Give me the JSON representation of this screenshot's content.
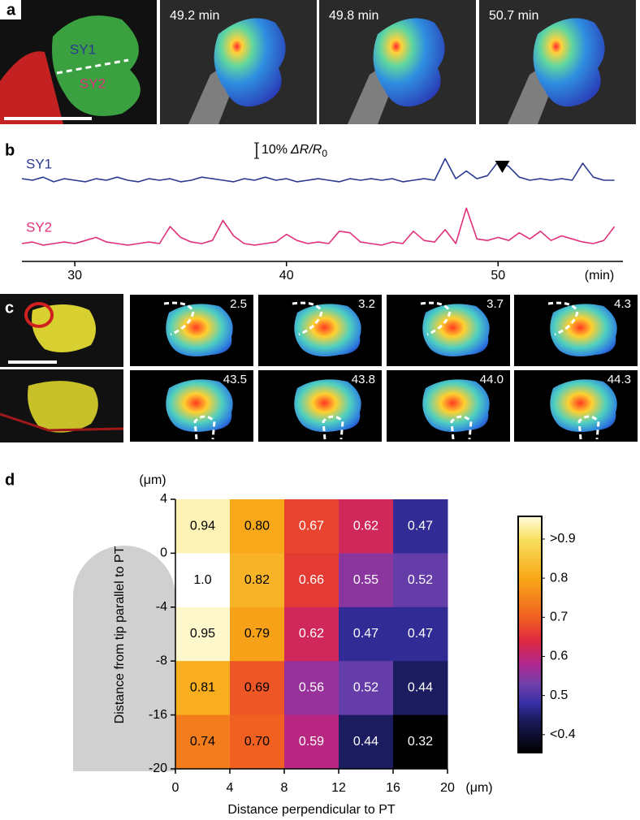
{
  "panel_labels": [
    "a",
    "b",
    "c",
    "d"
  ],
  "panel_a": {
    "sy1": "SY1",
    "sy2": "SY2",
    "times": [
      "49.2 min",
      "49.8 min",
      "50.7 min"
    ]
  },
  "panel_c": {
    "times": [
      [
        "2.5",
        "3.2",
        "3.7",
        "4.3"
      ],
      [
        "43.5",
        "43.8",
        "44.0",
        "44.3"
      ]
    ]
  },
  "chart_data": [
    {
      "type": "line",
      "x": [
        27.5,
        28,
        28.5,
        29,
        29.5,
        30,
        30.5,
        31,
        31.5,
        32,
        32.5,
        33,
        33.5,
        34,
        34.5,
        35,
        35.5,
        36,
        36.5,
        37,
        37.5,
        38,
        38.5,
        39,
        39.5,
        40,
        40.5,
        41,
        41.5,
        42,
        42.5,
        43,
        43.5,
        44,
        44.5,
        45,
        45.5,
        46,
        46.5,
        47,
        47.5,
        48,
        48.5,
        49,
        49.5,
        50,
        50.5,
        51,
        51.5,
        52,
        52.5,
        53,
        53.5,
        54,
        54.5,
        55,
        55.5
      ],
      "xlim": [
        27.5,
        55.9
      ],
      "xticks": [
        30,
        40,
        50
      ],
      "x_unit": "(min)",
      "series": [
        {
          "name": "SY1",
          "color": "#2b3990",
          "values": [
            1,
            0,
            2,
            -1,
            1,
            0,
            -1,
            1,
            0,
            2,
            0,
            -1,
            1,
            0,
            1,
            -1,
            0,
            2,
            1,
            0,
            -1,
            1,
            0,
            2,
            0,
            1,
            -1,
            0,
            1,
            0,
            -1,
            1,
            0,
            1,
            0,
            1,
            -1,
            0,
            1,
            0,
            14,
            1,
            6,
            1,
            3,
            12,
            9,
            2,
            0,
            1,
            0,
            1,
            0,
            11,
            2,
            0,
            0
          ]
        },
        {
          "name": "SY2",
          "color": "#e0307a",
          "values": [
            0,
            1,
            -1,
            0,
            1,
            0,
            2,
            4,
            1,
            0,
            -1,
            0,
            1,
            0,
            11,
            4,
            1,
            0,
            2,
            15,
            5,
            0,
            -1,
            0,
            1,
            6,
            2,
            0,
            1,
            0,
            8,
            7,
            1,
            0,
            -1,
            1,
            0,
            8,
            2,
            1,
            9,
            0,
            23,
            3,
            2,
            4,
            2,
            7,
            3,
            8,
            2,
            5,
            3,
            1,
            0,
            2,
            11
          ]
        }
      ],
      "scale_bar": {
        "value": 10,
        "label": "10%",
        "quantity": "ΔR/R",
        "subscript": "0"
      },
      "arrow_x": 50.2
    },
    {
      "type": "heatmap",
      "x_label": "Distance perpendicular to PT",
      "y_label": "Distance from tip parallel to PT",
      "x_unit": "(μm)",
      "y_unit": "(μm)",
      "xlim": [
        0,
        20
      ],
      "xticks": [
        0,
        4,
        8,
        12,
        16,
        20
      ],
      "y_edges": [
        4,
        0,
        -4,
        -8,
        -16,
        -20
      ],
      "values": [
        [
          0.94,
          0.8,
          0.67,
          0.62,
          0.47
        ],
        [
          1.0,
          0.82,
          0.66,
          0.55,
          0.52
        ],
        [
          0.95,
          0.79,
          0.62,
          0.47,
          0.47
        ],
        [
          0.81,
          0.69,
          0.56,
          0.52,
          0.44
        ],
        [
          0.74,
          0.7,
          0.59,
          0.44,
          0.32
        ]
      ],
      "value_labels": [
        [
          "0.94",
          "0.80",
          "0.67",
          "0.62",
          "0.47"
        ],
        [
          "1.0",
          "0.82",
          "0.66",
          "0.55",
          "0.52"
        ],
        [
          "0.95",
          "0.79",
          "0.62",
          "0.47",
          "0.47"
        ],
        [
          "0.81",
          "0.69",
          "0.56",
          "0.52",
          "0.44"
        ],
        [
          "0.74",
          "0.70",
          "0.59",
          "0.44",
          "0.32"
        ]
      ],
      "colorbar": {
        "clim": [
          0.354,
          0.958
        ],
        "ticks": [
          {
            "value": 0.9,
            "label": ">0.9"
          },
          0.8,
          0.7,
          0.6,
          0.5,
          {
            "value": 0.4,
            "label": "<0.4"
          }
        ],
        "colormap": [
          [
            0.35,
            "#000000"
          ],
          [
            0.44,
            "#1c1c60"
          ],
          [
            0.48,
            "#3830a8"
          ],
          [
            0.53,
            "#7040a8"
          ],
          [
            0.58,
            "#b02890"
          ],
          [
            0.64,
            "#e02840"
          ],
          [
            0.7,
            "#f06020"
          ],
          [
            0.8,
            "#f8a818"
          ],
          [
            0.9,
            "#f8e060"
          ],
          [
            0.96,
            "#fffbe0"
          ],
          [
            1.0,
            "#ffffff"
          ]
        ]
      }
    }
  ]
}
